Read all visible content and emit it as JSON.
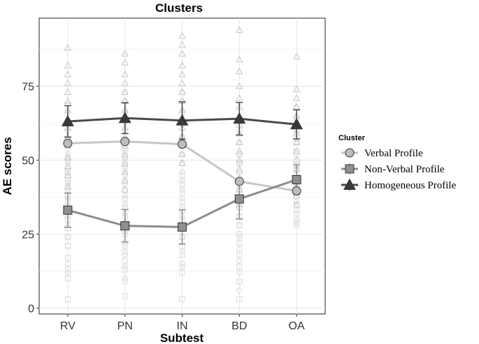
{
  "chart_data": {
    "type": "line",
    "title": "Clusters",
    "xlabel": "Subtest",
    "ylabel": "AE scores",
    "categories": [
      "RV",
      "PN",
      "IN",
      "BD",
      "OA"
    ],
    "ylim": [
      -2,
      98
    ],
    "yticks": [
      0,
      25,
      50,
      75
    ],
    "grid": true,
    "legend_title": "Cluster",
    "legend_position": "right",
    "series": [
      {
        "name": "Verbal Profile",
        "marker": "circle",
        "line_color": "#c6c6c6",
        "fill_color": "#bdbdbd",
        "values": [
          55.7,
          56.3,
          55.4,
          42.8,
          39.6
        ],
        "error": [
          0,
          0,
          0,
          0,
          0
        ],
        "raw_points": [
          [
            57,
            54,
            51,
            49,
            46,
            43,
            40,
            37,
            34,
            31,
            28,
            60,
            63,
            66,
            69,
            52,
            47,
            42,
            38,
            33,
            24,
            21,
            15,
            12
          ],
          [
            60,
            57,
            54,
            51,
            48,
            45,
            42,
            38,
            35,
            32,
            29,
            26,
            63,
            66,
            70,
            73,
            21,
            18,
            14,
            10
          ],
          [
            58,
            55,
            52,
            49,
            46,
            43,
            40,
            37,
            34,
            31,
            62,
            66,
            70,
            73,
            28,
            24,
            19,
            14
          ],
          [
            52,
            49,
            46,
            43,
            40,
            37,
            34,
            31,
            28,
            56,
            60,
            64,
            24,
            20,
            16,
            12,
            6
          ],
          [
            56,
            52,
            48,
            45,
            42,
            39,
            36,
            33,
            30,
            28,
            60,
            64,
            68,
            47,
            43
          ]
        ]
      },
      {
        "name": "Non-Verbal Profile",
        "marker": "square",
        "line_color": "#8c8c8c",
        "fill_color": "#8f8f8f",
        "values": [
          33.1,
          27.8,
          27.4,
          36.9,
          43.4
        ],
        "error": [
          5.8,
          5.5,
          5.8,
          6.8,
          5.0
        ],
        "raw_points": [
          [
            46,
            44,
            41,
            38,
            36,
            33,
            30,
            27,
            24,
            21,
            17,
            13,
            10,
            3,
            50
          ],
          [
            43,
            40,
            37,
            34,
            31,
            28,
            25,
            22,
            19,
            16,
            13,
            9,
            4,
            47,
            50,
            53
          ],
          [
            45,
            42,
            39,
            36,
            33,
            30,
            27,
            24,
            21,
            18,
            15,
            12,
            3
          ],
          [
            49,
            46,
            43,
            40,
            37,
            34,
            31,
            28,
            25,
            22,
            18,
            14,
            9,
            3,
            52
          ],
          [
            53,
            50,
            47,
            44,
            41,
            38,
            35,
            32,
            29,
            56,
            59
          ]
        ]
      },
      {
        "name": "Homogeneous Profile",
        "marker": "triangle",
        "line_color": "#4a4a4a",
        "fill_color": "#3a3a3a",
        "values": [
          63.1,
          64.2,
          63.4,
          64.0,
          62.1
        ],
        "error": [
          5.3,
          5.2,
          6.3,
          5.5,
          4.9
        ],
        "raw_points": [
          [
            88,
            82,
            79,
            76,
            73,
            70,
            67,
            64,
            61,
            58,
            55,
            51,
            48,
            45,
            41
          ],
          [
            86,
            83,
            79,
            76,
            73,
            70,
            67,
            64,
            61,
            58,
            55,
            52,
            49,
            46,
            43,
            40
          ],
          [
            92,
            89,
            86,
            82,
            79,
            76,
            73,
            70,
            67,
            64,
            61,
            58,
            55,
            52,
            49
          ],
          [
            94,
            84,
            80,
            75,
            71,
            68,
            65,
            62,
            59,
            56,
            53,
            50,
            47,
            44,
            40,
            35
          ],
          [
            85,
            74,
            71,
            68,
            65,
            62,
            59,
            56,
            53,
            50,
            47,
            44,
            41,
            38,
            35
          ]
        ]
      }
    ]
  }
}
